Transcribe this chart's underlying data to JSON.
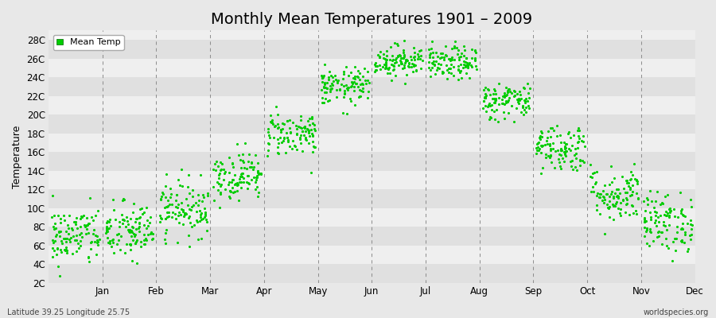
{
  "title": "Monthly Mean Temperatures 1901 – 2009",
  "ylabel": "Temperature",
  "footer_left": "Latitude 39.25 Longitude 25.75",
  "footer_right": "worldspecies.org",
  "legend_label": "Mean Temp",
  "dot_color": "#00cc00",
  "bg_color": "#e8e8e8",
  "band_light": "#efefef",
  "band_dark": "#e0e0e0",
  "ytick_labels": [
    "2C",
    "4C",
    "6C",
    "8C",
    "10C",
    "12C",
    "14C",
    "16C",
    "18C",
    "20C",
    "22C",
    "24C",
    "26C",
    "28C"
  ],
  "ytick_values": [
    2,
    4,
    6,
    8,
    10,
    12,
    14,
    16,
    18,
    20,
    22,
    24,
    26,
    28
  ],
  "ymin": 2,
  "ymax": 29,
  "month_names": [
    "Jan",
    "Feb",
    "Mar",
    "Apr",
    "May",
    "Jun",
    "Jul",
    "Aug",
    "Sep",
    "Oct",
    "Nov",
    "Dec"
  ],
  "monthly_means": [
    7.0,
    7.5,
    10.0,
    13.5,
    18.0,
    23.0,
    25.8,
    25.5,
    21.5,
    16.5,
    11.5,
    8.5
  ],
  "monthly_stds": [
    1.6,
    1.6,
    1.5,
    1.3,
    1.2,
    1.0,
    0.85,
    0.9,
    1.0,
    1.3,
    1.5,
    1.6
  ],
  "n_years": 109,
  "seed": 42,
  "dot_size": 5,
  "title_fontsize": 14,
  "axis_fontsize": 8.5,
  "ylabel_fontsize": 9
}
